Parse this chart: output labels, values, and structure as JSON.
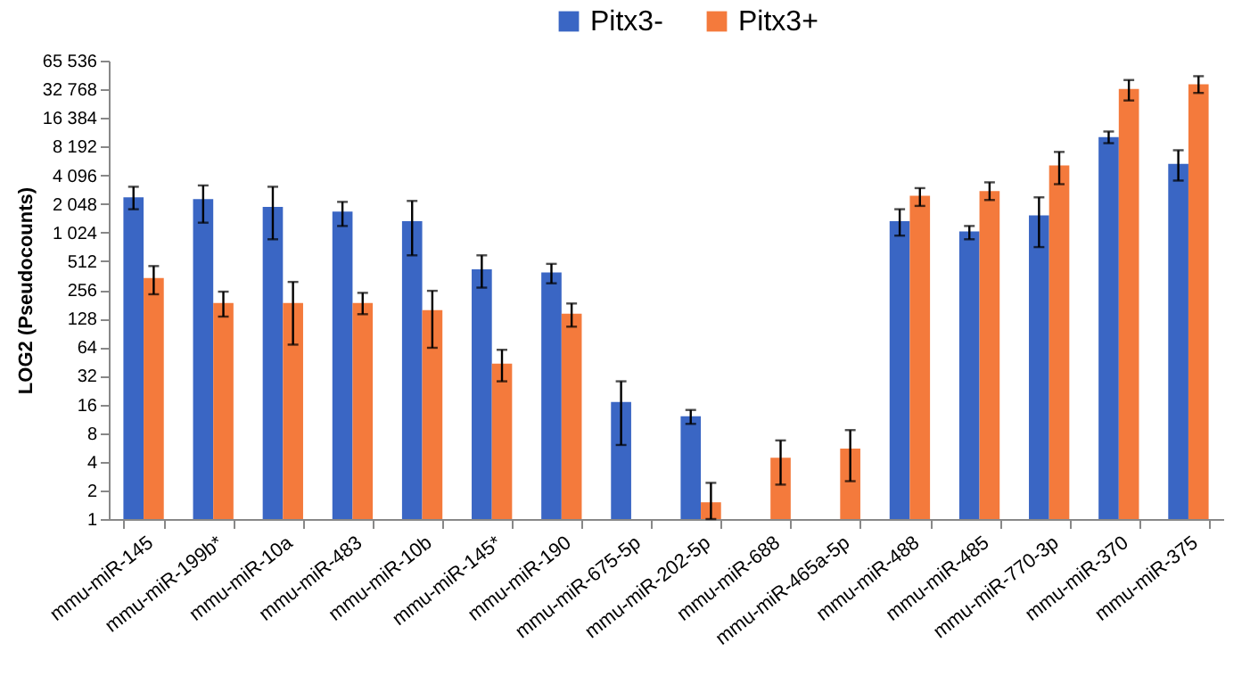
{
  "chart_data": {
    "type": "bar",
    "ylabel": "LOG2 (Pseudocounts)",
    "categories": [
      "mmu-miR-145",
      "mmu-miR-199b*",
      "mmu-miR-10a",
      "mmu-miR-483",
      "mmu-miR-10b",
      "mmu-miR-145*",
      "mmu-miR-190",
      "mmu-miR-675-5p",
      "mmu-miR-202-5p",
      "mmu-miR-688",
      "mmu-miR-465a-5p",
      "mmu-miR-488",
      "mmu-miR-485",
      "mmu-miR-770-3p",
      "mmu-miR-370",
      "mmu-miR-375"
    ],
    "series": [
      {
        "name": "Pitx3-",
        "color": "#3a66c4",
        "values": [
          2400,
          2300,
          1900,
          1700,
          1350,
          420,
          390,
          17,
          12,
          null,
          null,
          1350,
          1050,
          1550,
          10300,
          5400
        ],
        "errors": [
          [
            1800,
            3100
          ],
          [
            1300,
            3200
          ],
          [
            870,
            3100
          ],
          [
            1200,
            2150
          ],
          [
            590,
            2200
          ],
          [
            270,
            590
          ],
          [
            300,
            480
          ],
          [
            6,
            28
          ],
          [
            10,
            14
          ],
          null,
          null,
          [
            950,
            1800
          ],
          [
            870,
            1200
          ],
          [
            720,
            2400
          ],
          [
            8900,
            11800
          ],
          [
            3600,
            7500
          ]
        ]
      },
      {
        "name": "Pitx3+",
        "color": "#f47a3c",
        "values": [
          340,
          186,
          186,
          186,
          157,
          43,
          144,
          null,
          1.5,
          4.4,
          5.5,
          2500,
          2800,
          5200,
          33000,
          37000
        ],
        "errors": [
          [
            230,
            455
          ],
          [
            134,
            245
          ],
          [
            68,
            310
          ],
          [
            142,
            238
          ],
          [
            63,
            250
          ],
          [
            28,
            60
          ],
          [
            105,
            184
          ],
          null,
          [
            1,
            2.4
          ],
          [
            2.3,
            6.7
          ],
          [
            2.5,
            8.6
          ],
          [
            1950,
            3000
          ],
          [
            2250,
            3450
          ],
          [
            3300,
            7200
          ],
          [
            25000,
            41000
          ],
          [
            30000,
            45000
          ]
        ]
      }
    ],
    "ylim": [
      1,
      65536
    ],
    "yticks": [
      1,
      2,
      4,
      8,
      16,
      32,
      64,
      128,
      256,
      512,
      {
        "value": 1024,
        "label": "1 024"
      },
      {
        "value": 2048,
        "label": "2 048"
      },
      {
        "value": 4096,
        "label": "4 096"
      },
      {
        "value": 8192,
        "label": "8 192"
      },
      {
        "value": 16384,
        "label": "16 384"
      },
      {
        "value": 32768,
        "label": "32 768"
      },
      {
        "value": 65536,
        "label": "65 536"
      }
    ],
    "log": true,
    "grid": false,
    "legend": "top"
  }
}
